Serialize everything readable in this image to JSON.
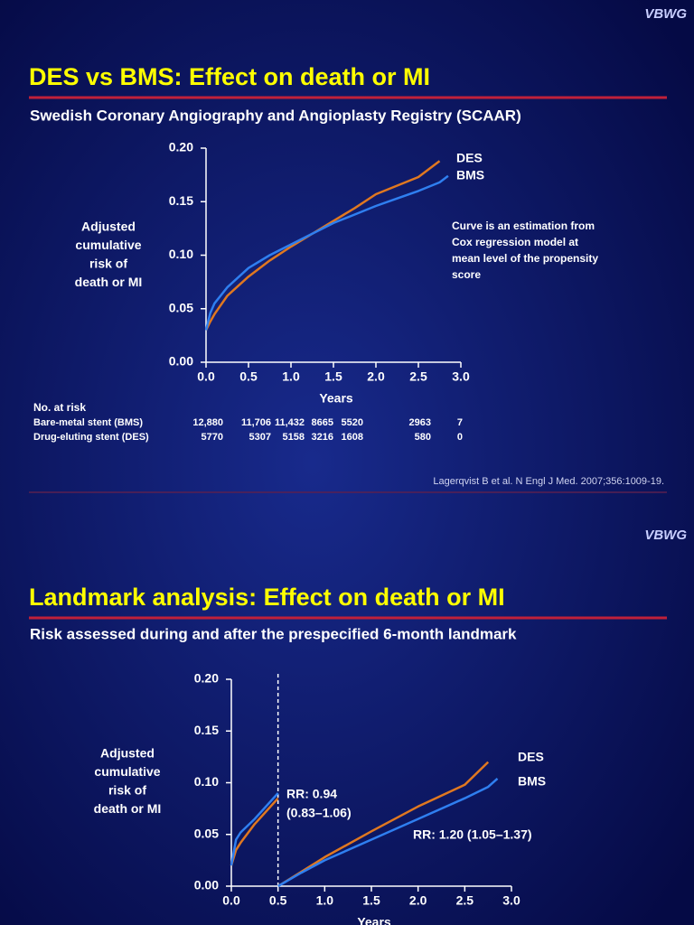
{
  "slides": [
    {
      "brand": "VBWG",
      "title": "DES vs BMS: Effect on death or MI",
      "subtitle": "Swedish Coronary Angiography and Angioplasty Registry (SCAAR)",
      "citation": "Lagerqvist B et al. N Engl J Med. 2007;356:1009-19."
    },
    {
      "brand": "VBWG",
      "title": "Landmark analysis: Effect on death or MI",
      "subtitle": "Risk assessed during and after the prespecified 6-month landmark"
    }
  ],
  "chart_data": [
    {
      "type": "line",
      "ylabel": [
        "Adjusted",
        "cumulative",
        "risk of",
        "death or MI"
      ],
      "xlabel": "Years",
      "xlim": [
        0,
        3
      ],
      "ylim": [
        0,
        0.2
      ],
      "xticks": [
        {
          "value": 0,
          "label": "0.0"
        },
        0.5,
        {
          "value": 1,
          "label": "1.0"
        },
        1.5,
        {
          "value": 2,
          "label": "2.0"
        },
        2.5,
        {
          "value": 3,
          "label": "3.0"
        }
      ],
      "yticks": [
        {
          "value": 0,
          "label": "0.00"
        },
        0.05,
        {
          "value": 0.1,
          "label": "0.10"
        },
        0.15,
        {
          "value": 0.2,
          "label": "0.20"
        }
      ],
      "x": [
        0,
        0.05,
        0.1,
        0.25,
        0.5,
        0.75,
        1.0,
        1.25,
        1.5,
        1.75,
        2.0,
        2.25,
        2.5,
        2.75,
        2.85
      ],
      "series": [
        {
          "name": "DES",
          "color": "#e07820",
          "values": [
            0.03,
            0.038,
            0.045,
            0.062,
            0.08,
            0.095,
            0.108,
            0.12,
            0.132,
            0.144,
            0.157,
            0.165,
            0.173,
            0.188,
            null
          ]
        },
        {
          "name": "BMS",
          "color": "#2f7ff0",
          "values": [
            0.03,
            0.046,
            0.055,
            0.07,
            0.088,
            0.1,
            0.11,
            0.12,
            0.13,
            0.138,
            0.146,
            0.153,
            0.16,
            0.168,
            0.174
          ]
        }
      ],
      "note": [
        "Curve is an estimation from",
        "Cox regression model at",
        "mean level of the propensity",
        "score"
      ],
      "risk_table": {
        "title": "No. at risk",
        "rows": [
          {
            "label": "Bare-metal stent (BMS)",
            "values": [
              "12,880",
              "11,706",
              "11,432",
              "8665",
              "5520",
              "2963",
              "7"
            ]
          },
          {
            "label": "Drug-eluting stent (DES)",
            "values": [
              "5770",
              "5307",
              "5158",
              "3216",
              "1608",
              "580",
              "0"
            ]
          }
        ]
      }
    },
    {
      "type": "line",
      "ylabel": [
        "Adjusted",
        "cumulative",
        "risk of",
        "death or MI"
      ],
      "xlabel": "Years",
      "xlim": [
        0,
        3
      ],
      "ylim": [
        0,
        0.2
      ],
      "xticks": [
        {
          "value": 0,
          "label": "0.0"
        },
        0.5,
        {
          "value": 1,
          "label": "1.0"
        },
        1.5,
        {
          "value": 2,
          "label": "2.0"
        },
        2.5,
        {
          "value": 3,
          "label": "3.0"
        }
      ],
      "yticks": [
        {
          "value": 0,
          "label": "0.00"
        },
        0.05,
        {
          "value": 0.1,
          "label": "0.10"
        },
        0.15,
        {
          "value": 0.2,
          "label": "0.20"
        }
      ],
      "landmark": 0.5,
      "x": [
        0,
        0.05,
        0.1,
        0.25,
        0.5,
        0.5,
        0.5,
        0.75,
        1.0,
        1.5,
        2.0,
        2.5,
        2.75,
        2.85
      ],
      "series": [
        {
          "name": "DES",
          "color": "#e07820",
          "values": [
            0.02,
            0.035,
            0.042,
            0.06,
            0.085,
            null,
            0,
            0.014,
            0.028,
            0.053,
            0.077,
            0.098,
            0.12,
            null
          ]
        },
        {
          "name": "BMS",
          "color": "#2f7ff0",
          "values": [
            0.02,
            0.045,
            0.052,
            0.065,
            0.09,
            null,
            0,
            0.013,
            0.025,
            0.045,
            0.065,
            0.085,
            0.096,
            0.104
          ]
        }
      ],
      "annotations": [
        "RR: 0.94",
        "(0.83–1.06)",
        "RR: 1.20 (1.05–1.37)"
      ]
    }
  ]
}
